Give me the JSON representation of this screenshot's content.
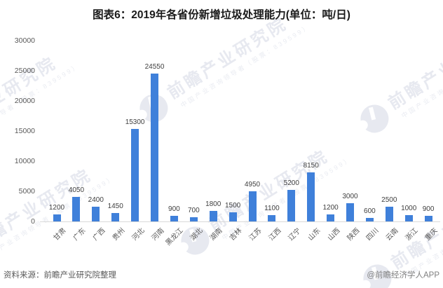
{
  "chart_data": {
    "type": "bar",
    "title": "图表6：2019年各省份新增垃圾处理能力(单位：吨/日)",
    "categories": [
      "甘肃",
      "广东",
      "广西",
      "贵州",
      "河北",
      "河南",
      "黑龙江",
      "湖北",
      "湖南",
      "吉林",
      "江苏",
      "江西",
      "辽宁",
      "山东",
      "山西",
      "陕西",
      "四川",
      "云南",
      "浙江",
      "重庆"
    ],
    "values": [
      1200,
      4050,
      2400,
      1450,
      15300,
      24550,
      900,
      700,
      1800,
      1500,
      4950,
      1100,
      5200,
      8150,
      1200,
      3000,
      600,
      2500,
      1000,
      900
    ],
    "xlabel": "",
    "ylabel": "",
    "ylim": [
      0,
      30000
    ],
    "yticks": [
      0,
      5000,
      10000,
      15000,
      20000,
      25000,
      30000
    ],
    "grid": false,
    "legend": "none",
    "value_labels": true,
    "bar_color": "#3F80DA"
  },
  "footer": {
    "source": "资料来源：前瞻产业研究院整理",
    "credit": "@前瞻经济学人APP"
  },
  "watermark": {
    "icon": "qianzhan-logo-icon",
    "text": "前瞻产业研究院",
    "subtext": "中国产业咨询领导者（股票：839599）"
  }
}
